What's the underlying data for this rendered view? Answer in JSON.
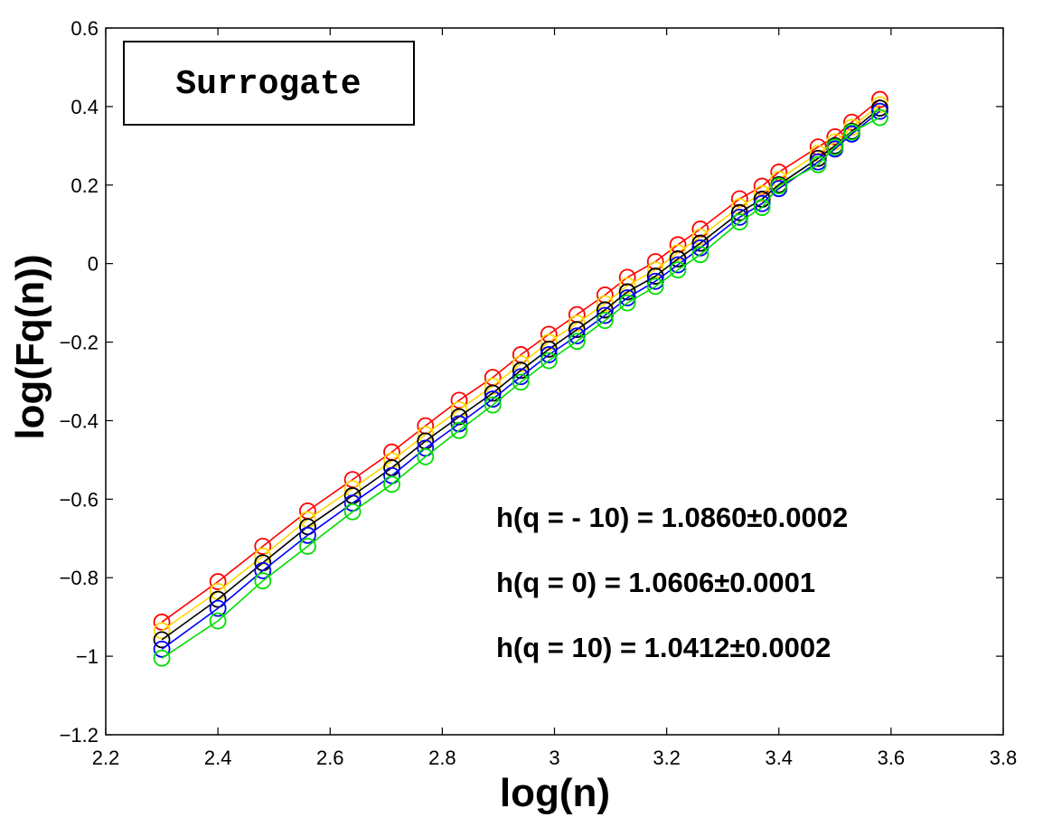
{
  "chart_data": {
    "type": "line",
    "title": "",
    "xlabel": "log(n)",
    "ylabel": "log(Fq(n))",
    "xlim": [
      2.2,
      3.8
    ],
    "ylim": [
      -1.2,
      0.6
    ],
    "xticks": [
      2.2,
      2.4,
      2.6,
      2.8,
      3.0,
      3.2,
      3.4,
      3.6,
      3.8
    ],
    "xtick_labels": [
      "2.2",
      "2.4",
      "2.6",
      "2.8",
      "3",
      "3.2",
      "3.4",
      "3.6",
      "3.8"
    ],
    "yticks": [
      0.6,
      0.4,
      0.2,
      0,
      -0.2,
      -0.4,
      -0.6,
      -0.8,
      -1,
      -1.2
    ],
    "ytick_labels": [
      "0.6",
      "0.4",
      "0.2",
      "0",
      "−0.2",
      "−0.4",
      "−0.6",
      "−0.8",
      "−1",
      "−1.2"
    ],
    "grid": false,
    "marker": "circle",
    "x": [
      2.3,
      2.4,
      2.48,
      2.56,
      2.64,
      2.71,
      2.77,
      2.83,
      2.89,
      2.94,
      2.99,
      3.04,
      3.09,
      3.13,
      3.18,
      3.22,
      3.26,
      3.33,
      3.37,
      3.4,
      3.47,
      3.5,
      3.53,
      3.58
    ],
    "series": [
      {
        "color": "#ff0000",
        "values": [
          -0.913,
          -0.81,
          -0.72,
          -0.63,
          -0.55,
          -0.48,
          -0.413,
          -0.348,
          -0.29,
          -0.232,
          -0.18,
          -0.13,
          -0.08,
          -0.035,
          0.005,
          0.048,
          0.088,
          0.165,
          0.197,
          0.233,
          0.297,
          0.323,
          0.36,
          0.418
        ]
      },
      {
        "color": "#ffd700",
        "values": [
          -0.935,
          -0.835,
          -0.745,
          -0.652,
          -0.573,
          -0.502,
          -0.435,
          -0.372,
          -0.312,
          -0.255,
          -0.2,
          -0.152,
          -0.102,
          -0.056,
          -0.016,
          0.028,
          0.068,
          0.145,
          0.178,
          0.215,
          0.281,
          0.31,
          0.347,
          0.405
        ]
      },
      {
        "color": "#000000",
        "values": [
          -0.958,
          -0.855,
          -0.762,
          -0.67,
          -0.591,
          -0.52,
          -0.452,
          -0.39,
          -0.33,
          -0.272,
          -0.218,
          -0.168,
          -0.118,
          -0.072,
          -0.032,
          0.012,
          0.052,
          0.13,
          0.164,
          0.201,
          0.268,
          0.3,
          0.337,
          0.396
        ]
      },
      {
        "color": "#0000ff",
        "values": [
          -0.982,
          -0.878,
          -0.782,
          -0.692,
          -0.61,
          -0.54,
          -0.47,
          -0.408,
          -0.345,
          -0.288,
          -0.232,
          -0.184,
          -0.132,
          -0.087,
          -0.045,
          -0.003,
          0.04,
          0.118,
          0.153,
          0.191,
          0.259,
          0.292,
          0.33,
          0.388
        ]
      },
      {
        "color": "#00dd00",
        "values": [
          -1.005,
          -0.91,
          -0.808,
          -0.72,
          -0.632,
          -0.562,
          -0.492,
          -0.425,
          -0.36,
          -0.302,
          -0.247,
          -0.198,
          -0.145,
          -0.1,
          -0.058,
          -0.016,
          0.023,
          0.106,
          0.143,
          0.198,
          0.252,
          0.297,
          0.335,
          0.372
        ]
      }
    ],
    "legend": {
      "text": "Surrogate",
      "placement": "top-left"
    },
    "annotations": [
      {
        "label": "h(q = - 10) = 1.0860±0.0002"
      },
      {
        "label": "h(q = 0) = 1.0606±0.0001"
      },
      {
        "label": "h(q = 10) = 1.0412±0.0002"
      }
    ]
  }
}
